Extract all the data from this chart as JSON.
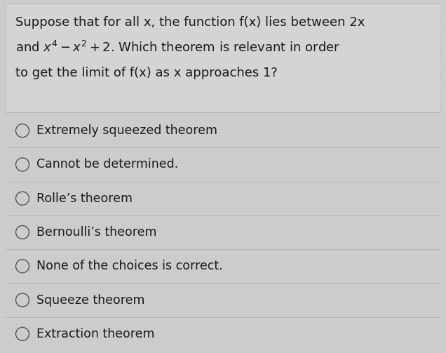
{
  "background_color": "#cdcdcd",
  "question_box_color": "#d4d4d4",
  "text_color": "#1a1a1a",
  "divider_color": "#b8b8b8",
  "circle_color": "#555555",
  "font_size_question": 13.0,
  "font_size_choices": 12.5,
  "question_lines": [
    "Suppose that for all x, the function f(x) lies between 2x",
    "and $x^4 - x^2 + 2$. Which theorem is relevant in order",
    "to get the limit of f(x) as x approaches 1?"
  ],
  "choices": [
    "Extremely squeezed theorem",
    "Cannot be determined.",
    "Rolle’s theorem",
    "Bernoulli’s theorem",
    "None of the choices is correct.",
    "Squeeze theorem",
    "Extraction theorem"
  ],
  "fig_width": 6.36,
  "fig_height": 5.03
}
